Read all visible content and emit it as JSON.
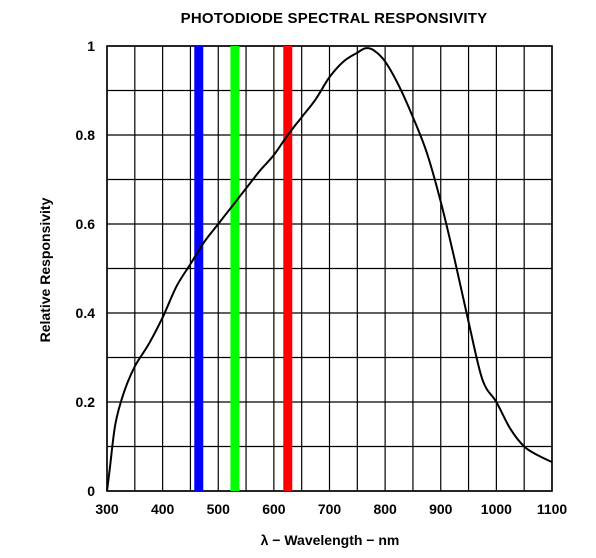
{
  "chart_data": {
    "type": "line",
    "title": "PHOTODIODE SPECTRAL RESPONSIVITY",
    "xlabel": "λ − Wavelength − nm",
    "ylabel": "Relative Responsivity",
    "xlim": [
      300,
      1100
    ],
    "ylim": [
      0,
      1
    ],
    "x_ticks": [
      300,
      400,
      500,
      600,
      700,
      800,
      900,
      1000,
      1100
    ],
    "x_tick_labels": [
      "300",
      "400",
      "500",
      "600",
      "700",
      "800",
      "900",
      "1000",
      "1100"
    ],
    "y_ticks": [
      0,
      0.2,
      0.4,
      0.6,
      0.8,
      1
    ],
    "y_tick_labels": [
      "0",
      "0.2",
      "0.4",
      "0.6",
      "0.8",
      "1"
    ],
    "grid": true,
    "x_grid": [
      300,
      350,
      400,
      450,
      500,
      550,
      600,
      650,
      700,
      750,
      800,
      850,
      900,
      950,
      1000,
      1050,
      1100
    ],
    "y_grid": [
      0,
      0.1,
      0.2,
      0.3,
      0.4,
      0.5,
      0.6,
      0.7,
      0.8,
      0.9,
      1
    ],
    "series": [
      {
        "color": "#000000",
        "x": [
          300,
          305,
          315,
          330,
          350,
          375,
          400,
          425,
          450,
          475,
          500,
          525,
          550,
          575,
          600,
          625,
          650,
          675,
          700,
          725,
          750,
          765,
          780,
          800,
          825,
          850,
          875,
          900,
          925,
          950,
          975,
          1000,
          1025,
          1050,
          1075,
          1100
        ],
        "y": [
          0.0,
          0.05,
          0.15,
          0.22,
          0.28,
          0.33,
          0.39,
          0.46,
          0.51,
          0.56,
          0.6,
          0.64,
          0.68,
          0.72,
          0.755,
          0.8,
          0.84,
          0.88,
          0.93,
          0.965,
          0.985,
          0.995,
          0.99,
          0.965,
          0.91,
          0.84,
          0.76,
          0.65,
          0.52,
          0.38,
          0.25,
          0.2,
          0.14,
          0.1,
          0.08,
          0.065
        ]
      }
    ],
    "vertical_bands": [
      {
        "x": 465,
        "color": "#0000ff"
      },
      {
        "x": 530,
        "color": "#00ff00"
      },
      {
        "x": 625,
        "color": "#ff0000"
      }
    ]
  }
}
